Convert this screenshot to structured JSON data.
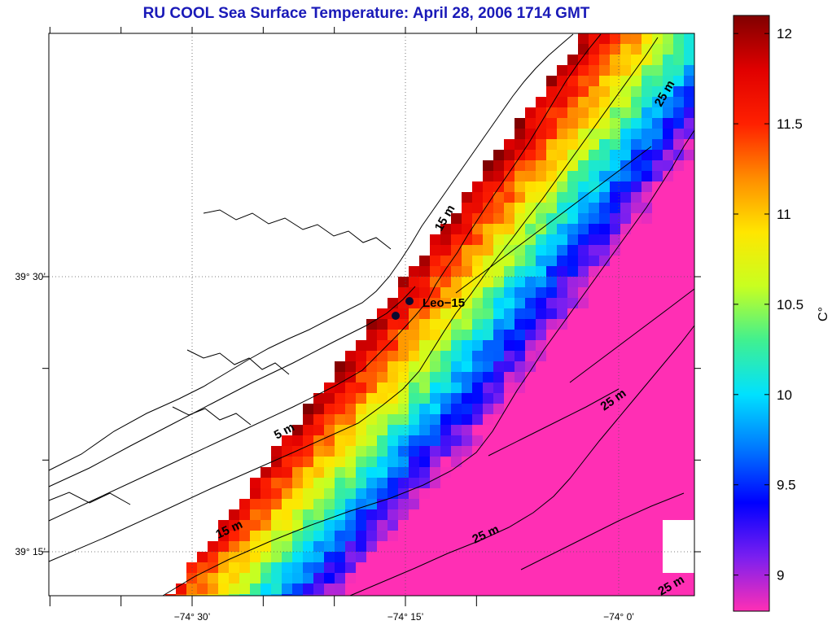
{
  "title": "RU COOL  Sea Surface Temperature:  April 28, 2006 1714 GMT",
  "map": {
    "lon_ticks": [
      {
        "value": -74.5,
        "label": "−74° 30’"
      },
      {
        "value": -74.25,
        "label": "−74° 15’"
      },
      {
        "value": -74.0,
        "label": "−74° 0’"
      }
    ],
    "lat_ticks": [
      {
        "value": 39.5,
        "label": "39° 30’"
      },
      {
        "value": 39.25,
        "label": "39° 15’"
      }
    ],
    "station": {
      "name": "Leo-15",
      "label": "Leo−15"
    },
    "contour_labels": [
      "5 m",
      "15 m",
      "15 m",
      "25 m",
      "25 m",
      "25 m",
      "25 m"
    ]
  },
  "colorbar": {
    "unit": "C°",
    "min": 8.8,
    "max": 12.1,
    "ticks": [
      {
        "value": 9,
        "label": "9"
      },
      {
        "value": 9.5,
        "label": "9.5"
      },
      {
        "value": 10,
        "label": "10"
      },
      {
        "value": 10.5,
        "label": "10.5"
      },
      {
        "value": 11,
        "label": "11"
      },
      {
        "value": 11.5,
        "label": "11.5"
      },
      {
        "value": 12,
        "label": "12"
      }
    ],
    "colors": [
      "#ff2fb4",
      "#7a1ff0",
      "#0000ff",
      "#0078ff",
      "#00e1ff",
      "#40f090",
      "#c8ff20",
      "#ffe600",
      "#ff8c00",
      "#ff2000",
      "#e00000",
      "#800000"
    ]
  }
}
